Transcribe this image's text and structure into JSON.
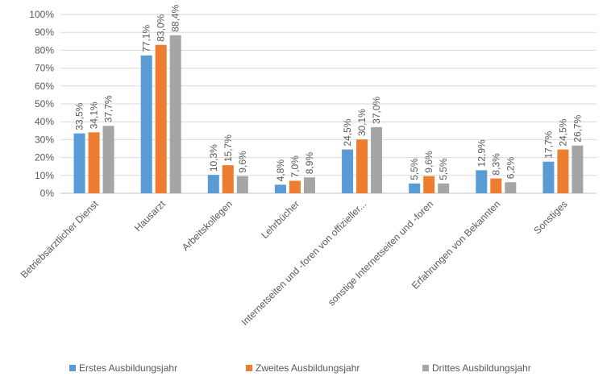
{
  "chart_data": {
    "type": "bar",
    "title": "",
    "xlabel": "",
    "ylabel": "",
    "ylim": [
      0,
      100
    ],
    "yticks": [
      "0%",
      "10%",
      "20%",
      "30%",
      "40%",
      "50%",
      "60%",
      "70%",
      "80%",
      "90%",
      "100%"
    ],
    "grid": true,
    "legend_position": "bottom",
    "categories": [
      "Betriebsärztlicher Dienst",
      "Hausarzt",
      "Arbeitskollegen",
      "Lehrbücher",
      "Internetseiten und -foren von offizieller...",
      "sonstige Internetseiten und -foren",
      "Erfahrungen von Bekannten",
      "Sonstiges"
    ],
    "series": [
      {
        "name": "Erstes Ausbildungsjahr",
        "color": "#5b9bd5",
        "values": [
          33.5,
          77.1,
          10.3,
          4.8,
          24.5,
          5.5,
          12.9,
          17.7
        ],
        "labels": [
          "33,5%",
          "77,1%",
          "10,3%",
          "4,8%",
          "24,5%",
          "5,5%",
          "12,9%",
          "17,7%"
        ]
      },
      {
        "name": "Zweites Ausbildungsjahr",
        "color": "#ed7d31",
        "values": [
          34.1,
          83.0,
          15.7,
          7.0,
          30.1,
          9.6,
          8.3,
          24.5
        ],
        "labels": [
          "34,1%",
          "83,0%",
          "15,7%",
          "7,0%",
          "30,1%",
          "9,6%",
          "8,3%",
          "24,5%"
        ]
      },
      {
        "name": "Drittes Ausbildungsjahr",
        "color": "#a5a5a5",
        "values": [
          37.7,
          88.4,
          9.6,
          8.9,
          37.0,
          5.5,
          6.2,
          26.7
        ],
        "labels": [
          "37,7%",
          "88,4%",
          "9,6%",
          "8,9%",
          "37,0%",
          "5,5%",
          "6,2%",
          "26,7%"
        ]
      }
    ]
  }
}
